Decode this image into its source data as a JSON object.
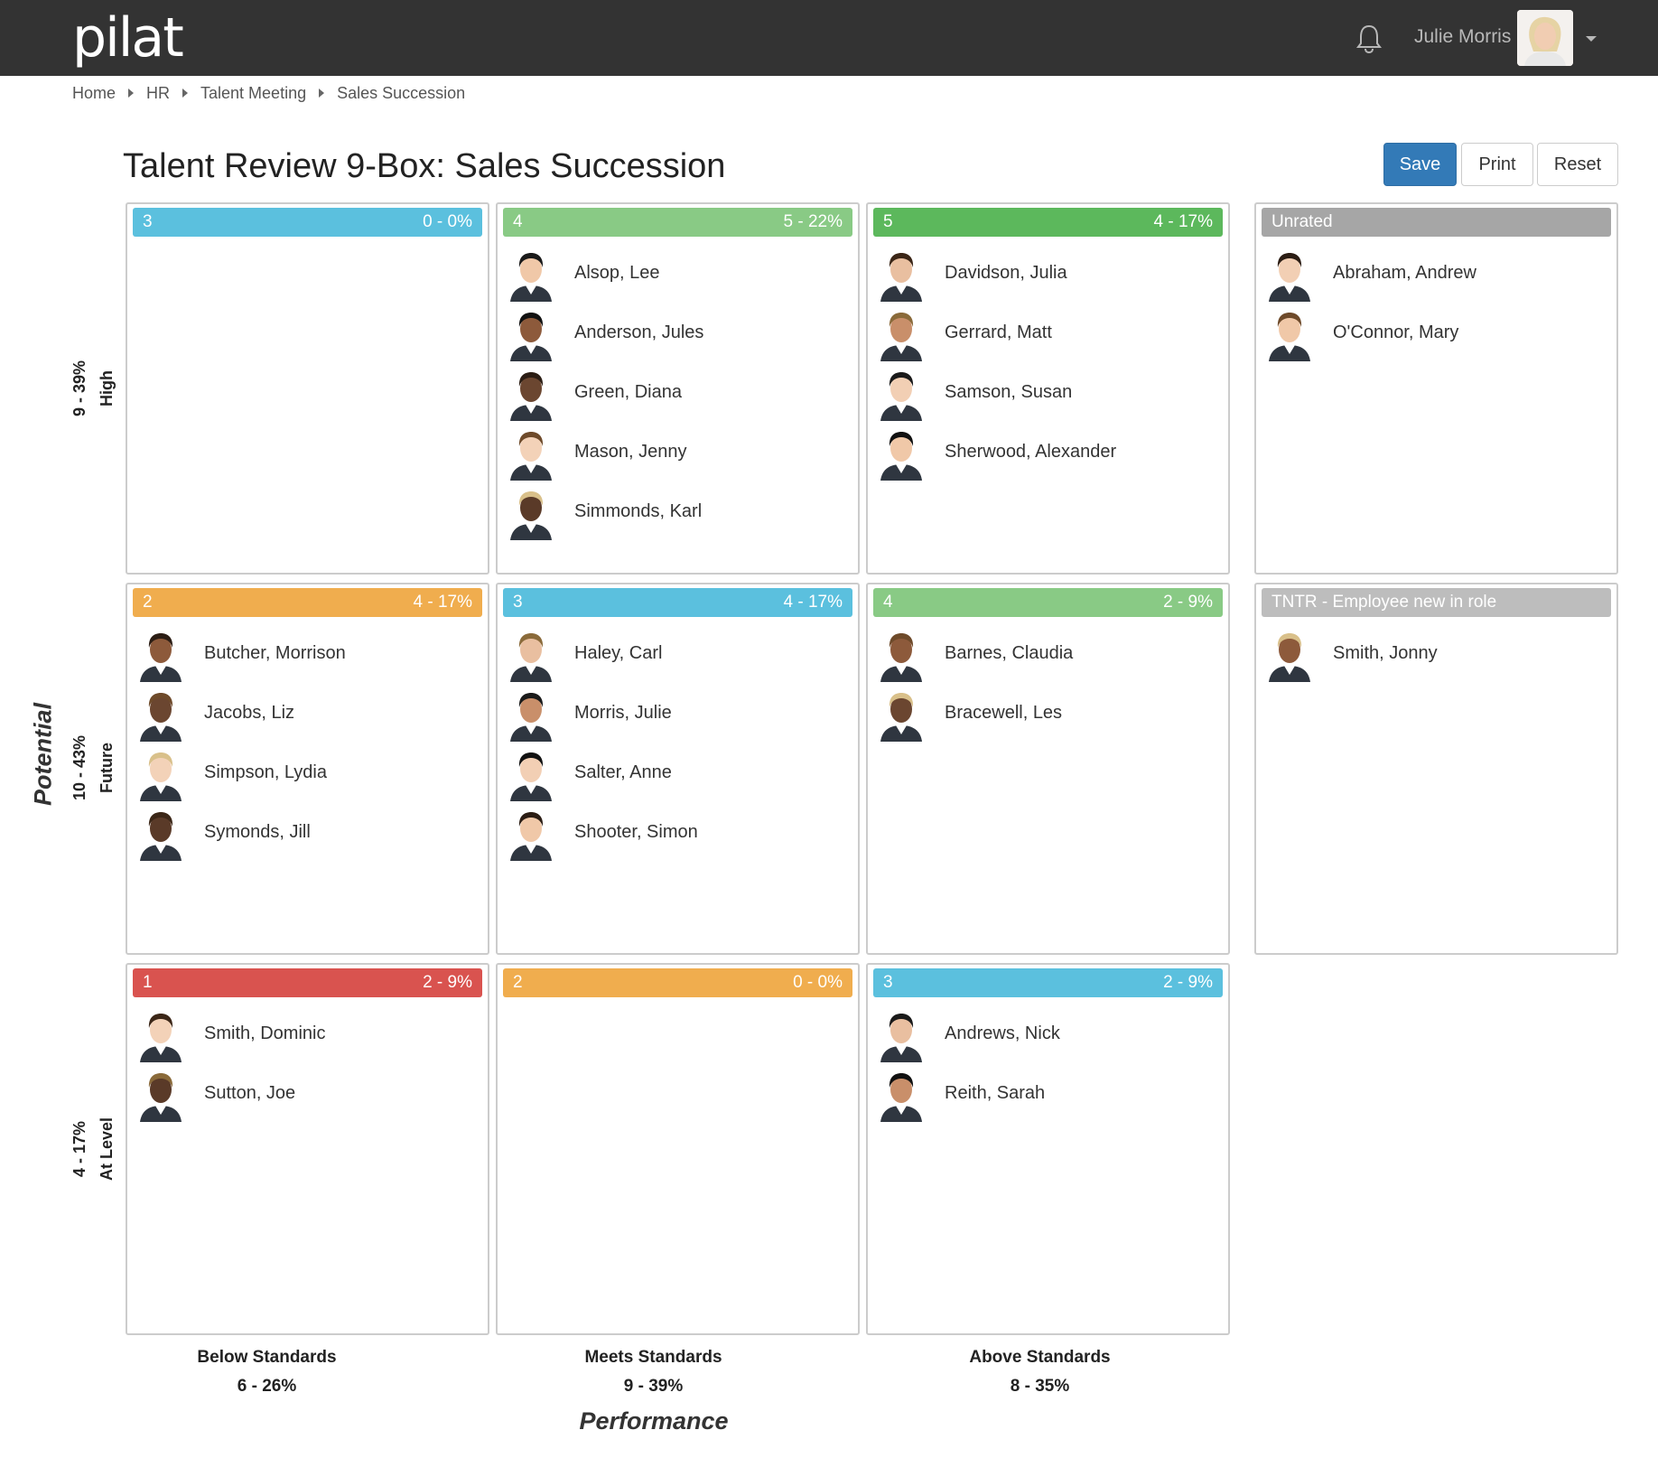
{
  "header": {
    "logo": "pilat",
    "user_name": "Julie Morris"
  },
  "breadcrumb": [
    "Home",
    "HR",
    "Talent Meeting",
    "Sales Succession"
  ],
  "page_title": "Talent Review 9-Box: Sales Succession",
  "buttons": {
    "save": "Save",
    "print": "Print",
    "reset": "Reset"
  },
  "axes": {
    "y_title": "Potential",
    "x_title": "Performance"
  },
  "rows": [
    {
      "name": "High",
      "count": "9 - 39%"
    },
    {
      "name": "Future",
      "count": "10 - 43%"
    },
    {
      "name": "At Level",
      "count": "4 - 17%"
    }
  ],
  "columns": [
    {
      "name": "Below Standards",
      "count": "6 - 26%"
    },
    {
      "name": "Meets Standards",
      "count": "9 - 39%"
    },
    {
      "name": "Above Standards",
      "count": "8 - 35%"
    }
  ],
  "boxes": [
    {
      "num": "3",
      "count": "0 - 0%",
      "color": "#5bc0de",
      "people": []
    },
    {
      "num": "4",
      "count": "5 - 22%",
      "color": "#89ca85",
      "people": [
        "Alsop, Lee",
        "Anderson, Jules",
        "Green, Diana",
        "Mason, Jenny",
        "Simmonds, Karl"
      ]
    },
    {
      "num": "5",
      "count": "4 - 17%",
      "color": "#5cb85c",
      "people": [
        "Davidson, Julia",
        "Gerrard, Matt",
        "Samson, Susan",
        "Sherwood, Alexander"
      ]
    },
    {
      "num": "2",
      "count": "4 - 17%",
      "color": "#f0ad4e",
      "people": [
        "Butcher, Morrison",
        "Jacobs, Liz",
        "Simpson, Lydia",
        "Symonds, Jill"
      ]
    },
    {
      "num": "3",
      "count": "4 - 17%",
      "color": "#5bc0de",
      "people": [
        "Haley, Carl",
        "Morris, Julie",
        "Salter, Anne",
        "Shooter, Simon"
      ]
    },
    {
      "num": "4",
      "count": "2 - 9%",
      "color": "#89ca85",
      "people": [
        "Barnes, Claudia",
        "Bracewell, Les"
      ]
    },
    {
      "num": "1",
      "count": "2 - 9%",
      "color": "#d9534f",
      "people": [
        "Smith, Dominic",
        "Sutton, Joe"
      ]
    },
    {
      "num": "2",
      "count": "0 - 0%",
      "color": "#f0ad4e",
      "people": []
    },
    {
      "num": "3",
      "count": "2 - 9%",
      "color": "#5bc0de",
      "people": [
        "Andrews, Nick",
        "Reith, Sarah"
      ]
    }
  ],
  "side_boxes": [
    {
      "title": "Unrated",
      "color": "#a6a6a6",
      "people": [
        "Abraham, Andrew",
        "O'Connor, Mary"
      ]
    },
    {
      "title": "TNTR - Employee new in role",
      "color": "#bdbdbd",
      "people": [
        "Smith, Jonny"
      ]
    }
  ]
}
